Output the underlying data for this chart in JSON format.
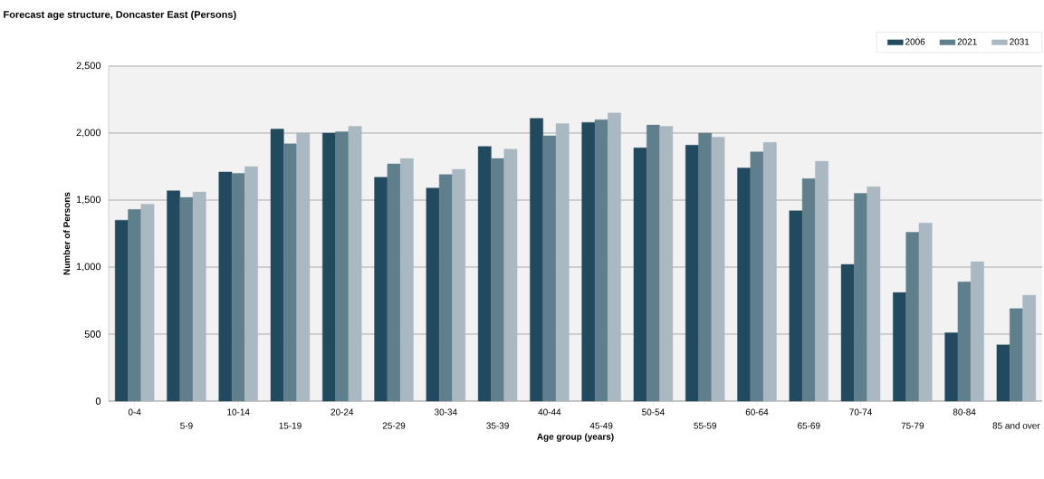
{
  "chart_data": {
    "type": "bar",
    "title": "Forecast age structure, Doncaster East (Persons)",
    "xlabel": "Age group (years)",
    "ylabel": "Number of Persons",
    "categories": [
      "0-4",
      "5-9",
      "10-14",
      "15-19",
      "20-24",
      "25-29",
      "30-34",
      "35-39",
      "40-44",
      "45-49",
      "50-54",
      "55-59",
      "60-64",
      "65-69",
      "70-74",
      "75-79",
      "80-84",
      "85 and over"
    ],
    "series": [
      {
        "name": "2006",
        "color": "#224a5e",
        "values": [
          1350,
          1570,
          1710,
          2030,
          2000,
          1670,
          1590,
          1900,
          2110,
          2080,
          1890,
          1910,
          1740,
          1420,
          1020,
          810,
          510,
          420
        ]
      },
      {
        "name": "2021",
        "color": "#607f8c",
        "values": [
          1430,
          1520,
          1700,
          1920,
          2010,
          1770,
          1690,
          1810,
          1980,
          2100,
          2060,
          2000,
          1860,
          1660,
          1550,
          1260,
          890,
          690
        ]
      },
      {
        "name": "2031",
        "color": "#a9b8c1",
        "values": [
          1470,
          1560,
          1750,
          2000,
          2050,
          1810,
          1730,
          1880,
          2070,
          2150,
          2050,
          1970,
          1930,
          1790,
          1600,
          1330,
          1040,
          790
        ]
      }
    ],
    "ylim": [
      0,
      2500
    ],
    "yticks": [
      0,
      500,
      {
        "value": 1000,
        "label": "1,000"
      },
      {
        "value": 1500,
        "label": "1,500"
      },
      {
        "value": 2000,
        "label": "2,000"
      },
      {
        "value": 2500,
        "label": "2,500"
      }
    ],
    "grid": "y",
    "legend": "top right"
  }
}
